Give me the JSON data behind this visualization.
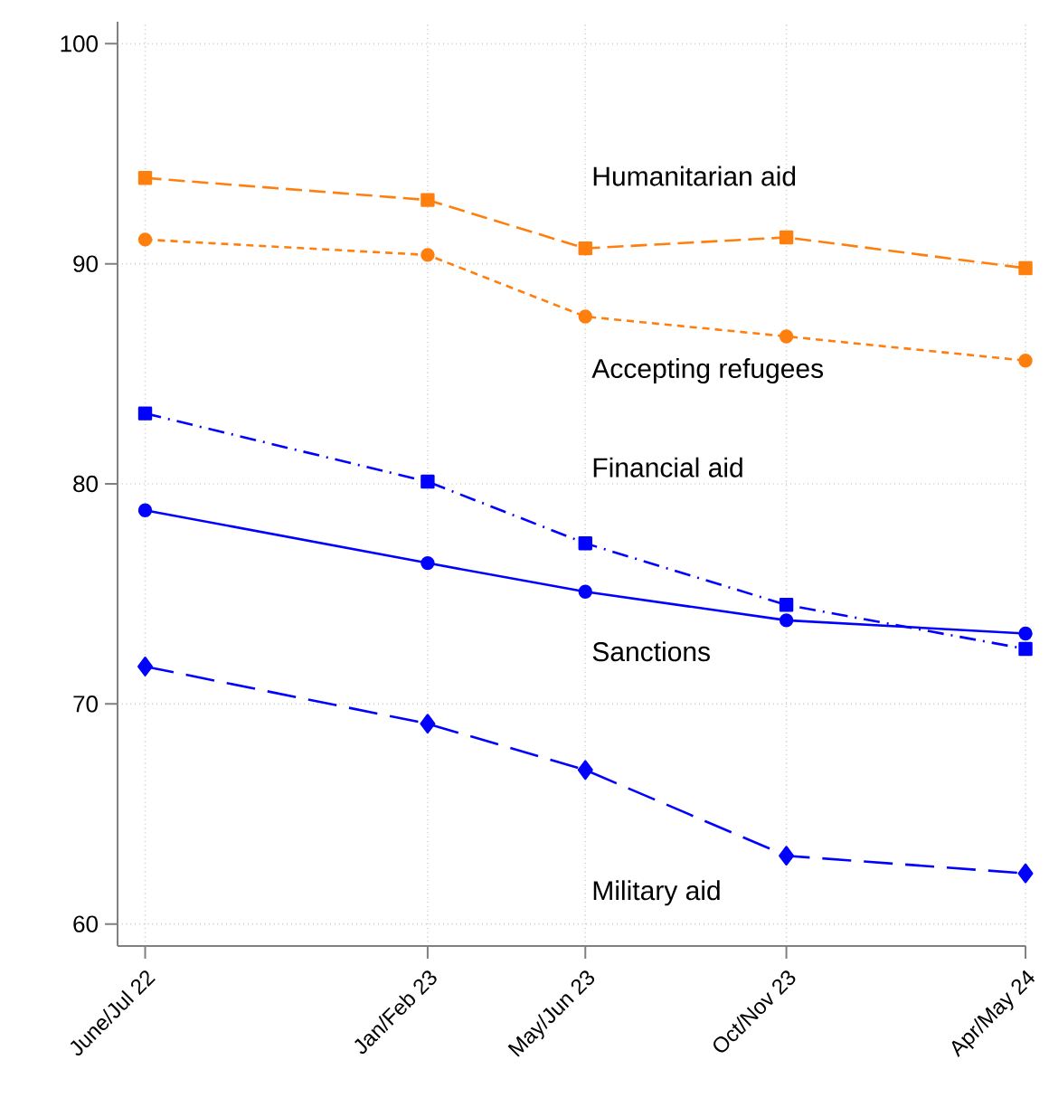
{
  "chart_data": {
    "type": "line",
    "x": [
      "2022-07",
      "2023-02",
      "2023-06",
      "2023-11",
      "2024-05"
    ],
    "xlim": [
      "2022-06-10",
      "2024-05"
    ],
    "xticks": [
      {
        "value": "2022-07",
        "label": "June/Jul 22"
      },
      {
        "value": "2023-02",
        "label": "Jan/Feb 23"
      },
      {
        "value": "2023-06",
        "label": "May/Jun 23"
      },
      {
        "value": "2023-11",
        "label": "Oct/Nov 23"
      },
      {
        "value": "2024-05",
        "label": "Apr/May 24"
      }
    ],
    "ylim": [
      59,
      101
    ],
    "yticks": [
      60,
      70,
      80,
      90,
      100
    ],
    "grid": true,
    "series": [
      {
        "name": "Humanitarian aid",
        "color": "#ff7f0e",
        "marker": "square",
        "line_style": "dashed",
        "values": [
          93.9,
          92.9,
          90.7,
          91.2,
          89.8
        ]
      },
      {
        "name": "Accepting refugees",
        "color": "#ff7f0e",
        "marker": "circle",
        "line_style": "dotted",
        "values": [
          91.1,
          90.4,
          87.6,
          86.7,
          85.6
        ]
      },
      {
        "name": "Financial aid",
        "color": "#0000ff",
        "marker": "square",
        "line_style": "dashdot",
        "values": [
          83.2,
          80.1,
          77.3,
          74.5,
          72.5
        ]
      },
      {
        "name": "Sanctions",
        "color": "#0000ff",
        "marker": "circle",
        "line_style": "solid",
        "values": [
          78.8,
          76.4,
          75.1,
          73.8,
          73.2
        ]
      },
      {
        "name": "Military aid",
        "color": "#0000ff",
        "marker": "diamond",
        "line_style": "longdash",
        "values": [
          71.7,
          69.1,
          67.0,
          63.1,
          62.3
        ]
      }
    ]
  }
}
